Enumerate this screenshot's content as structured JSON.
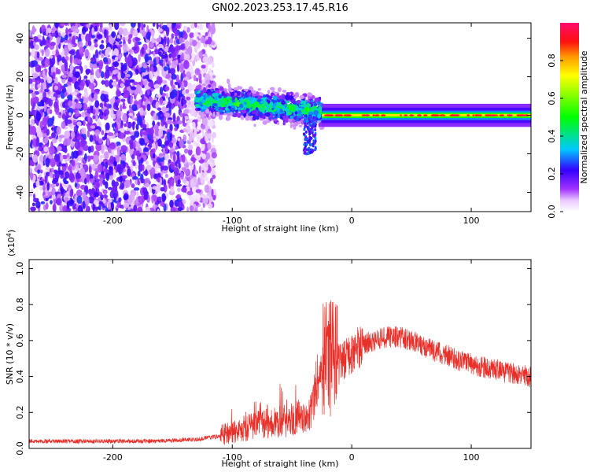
{
  "title": "GN02.2023.253.17.45.R16",
  "chart_data": [
    {
      "type": "heatmap",
      "title": "GN02.2023.253.17.45.R16",
      "xlabel": "Height of straight line (km)",
      "ylabel": "Frequency (Hz)",
      "xlim": [
        -270,
        150
      ],
      "ylim": [
        -50,
        48
      ],
      "x_ticks": [
        -200,
        -100,
        0,
        100
      ],
      "x_tick_labels": [
        "-200",
        "-100",
        "0",
        "100"
      ],
      "y_ticks": [
        -40,
        -20,
        0,
        20,
        40
      ],
      "y_tick_labels": [
        "-40",
        "-20",
        "0",
        "20",
        "40"
      ],
      "colorbar": {
        "label": "Normalized spectral amplitude",
        "range": [
          0.0,
          1.0
        ],
        "ticks": [
          0.0,
          0.2,
          0.4,
          0.6,
          0.8
        ],
        "tick_labels": [
          "0.0",
          "0.2",
          "0.4",
          "0.6",
          "0.8"
        ],
        "colormap": "rainbow (white-violet-blue-cyan-green-yellow-orange-red-magenta)"
      },
      "regions": [
        {
          "name": "noise",
          "x_range": [
            -270,
            -125
          ],
          "freq_range": [
            -50,
            48
          ],
          "amplitude": 0.15
        },
        {
          "name": "chaotic-echo",
          "x_range": [
            -130,
            -25
          ],
          "freq_center_start": 8,
          "freq_center_end": 2,
          "freq_halfwidth": 6,
          "amplitude": 0.45
        },
        {
          "name": "chaotic-tail",
          "x_range": [
            -40,
            -30
          ],
          "freq_range": [
            -20,
            0
          ],
          "amplitude": 0.3
        },
        {
          "name": "coherent-line",
          "x_range": [
            -25,
            150
          ],
          "freq_center": 0,
          "freq_halfwidth": 2,
          "amplitude": 0.75
        }
      ]
    },
    {
      "type": "line",
      "xlabel": "Height of straight line (km)",
      "ylabel": "SNR (10 * v/v)",
      "y_scale_label": "(x10",
      "y_scale_exponent": "4",
      "y_scale_close": ")",
      "xlim": [
        -270,
        150
      ],
      "ylim": [
        0,
        1.05
      ],
      "x_ticks": [
        -200,
        -100,
        0,
        100
      ],
      "x_tick_labels": [
        "-200",
        "-100",
        "0",
        "100"
      ],
      "y_ticks": [
        0.0,
        0.2,
        0.4,
        0.6,
        0.8,
        1.0
      ],
      "y_tick_labels": [
        "0.0",
        "0.2",
        "0.4",
        "0.6",
        "0.8",
        "1.0"
      ],
      "line_color": "#e8302a",
      "series": [
        {
          "x": [
            -270,
            -250,
            -230,
            -210,
            -190,
            -170,
            -150,
            -130,
            -120,
            -110,
            -100,
            -90,
            -80,
            -70,
            -60,
            -50,
            -40,
            -35,
            -30,
            -25,
            -20,
            -15,
            -10,
            -5,
            0,
            5,
            10,
            20,
            30,
            40,
            50,
            60,
            70,
            80,
            90,
            100,
            110,
            120,
            130,
            140,
            150
          ],
          "values": [
            0.04,
            0.04,
            0.04,
            0.04,
            0.04,
            0.04,
            0.045,
            0.05,
            0.06,
            0.07,
            0.09,
            0.11,
            0.13,
            0.14,
            0.15,
            0.16,
            0.17,
            0.2,
            0.3,
            0.45,
            0.5,
            0.48,
            0.47,
            0.49,
            0.53,
            0.56,
            0.58,
            0.6,
            0.62,
            0.62,
            0.6,
            0.57,
            0.54,
            0.52,
            0.49,
            0.47,
            0.45,
            0.44,
            0.42,
            0.41,
            0.4
          ]
        }
      ],
      "grid": false
    }
  ]
}
